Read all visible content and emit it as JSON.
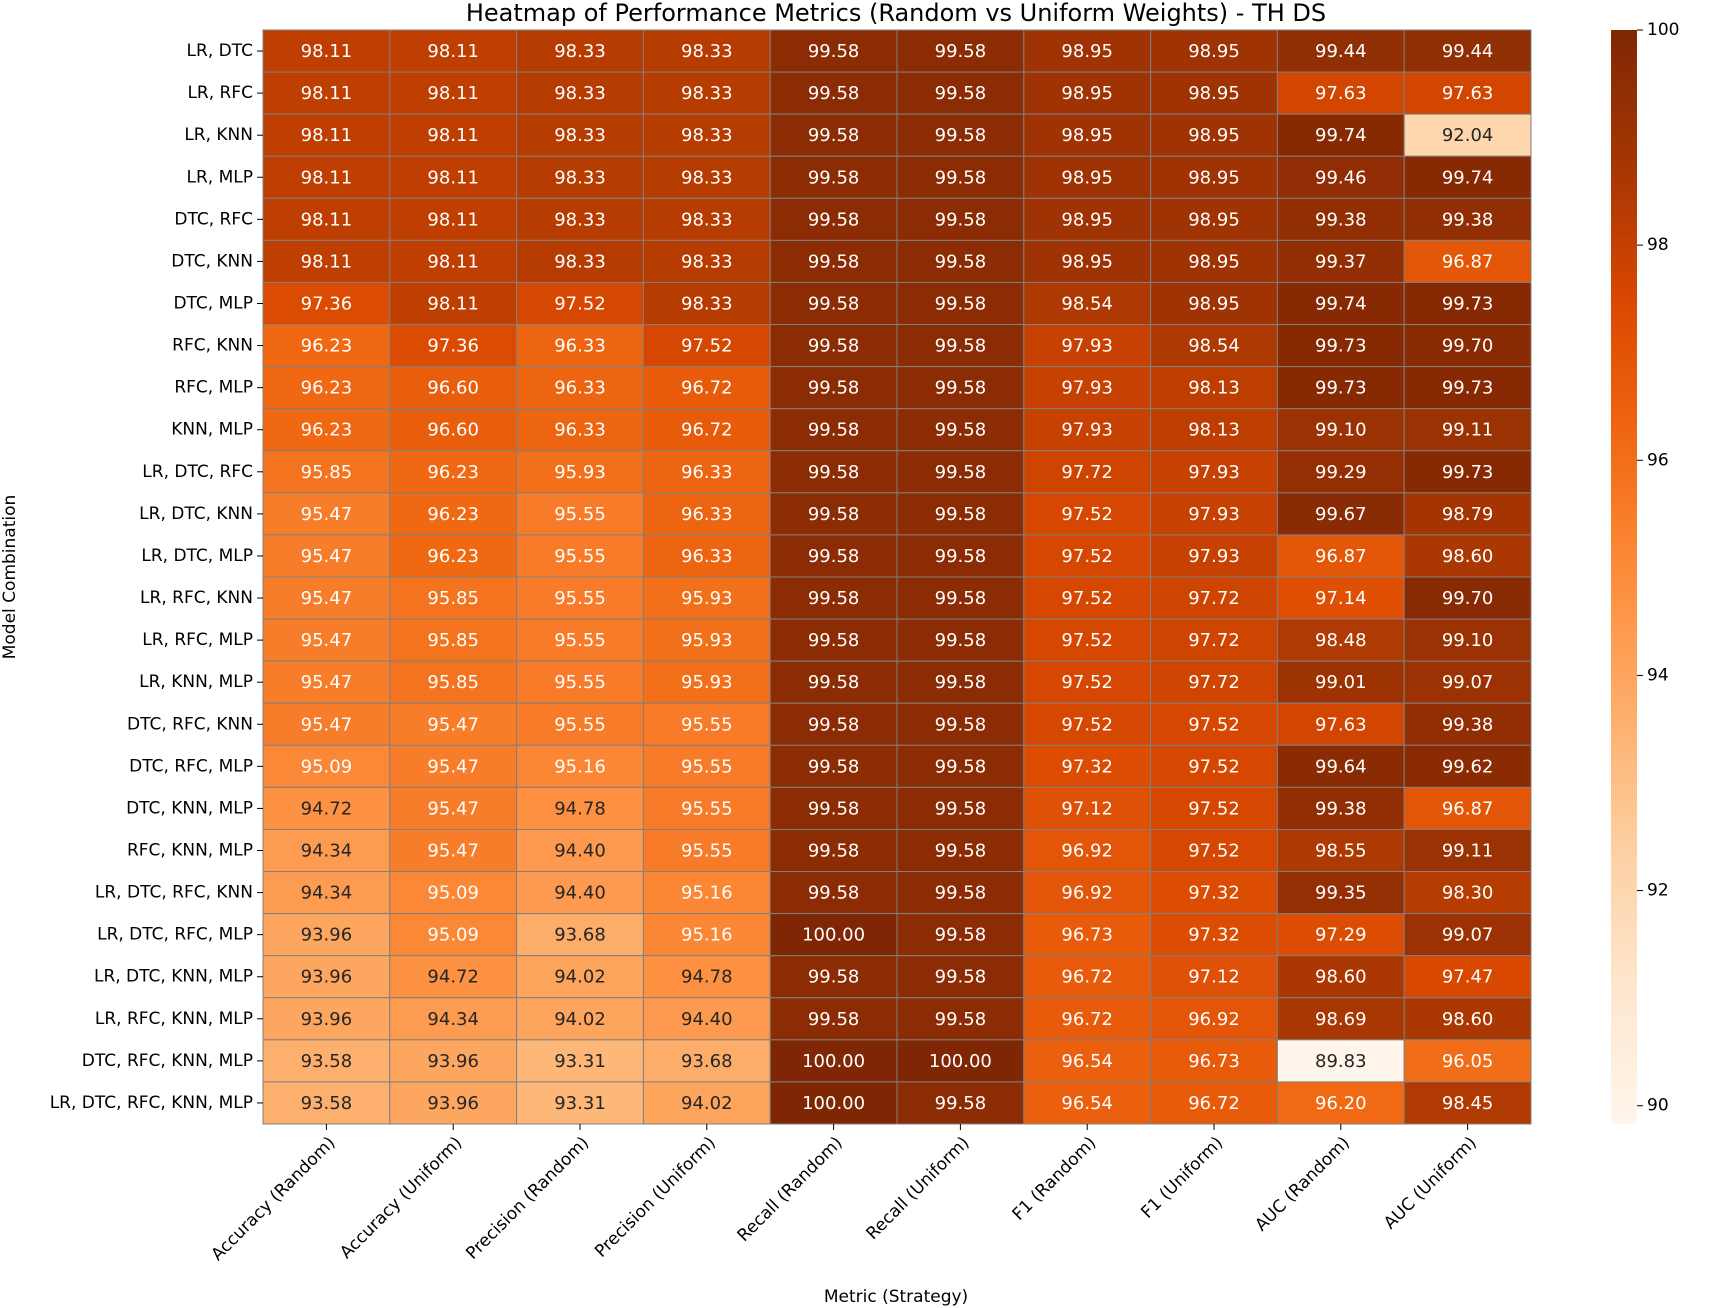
{
  "chart_data": {
    "type": "heatmap",
    "title": "Heatmap of Performance Metrics (Random vs Uniform Weights) - TH DS",
    "xlabel": "Metric (Strategy)",
    "ylabel": "Model Combination",
    "categories": [
      "Accuracy (Random)",
      "Accuracy (Uniform)",
      "Precision (Random)",
      "Precision (Uniform)",
      "Recall (Random)",
      "Recall (Uniform)",
      "F1 (Random)",
      "F1 (Uniform)",
      "AUC (Random)",
      "AUC (Uniform)"
    ],
    "y_categories": [
      "LR, DTC",
      "LR, RFC",
      "LR, KNN",
      "LR, MLP",
      "DTC, RFC",
      "DTC, KNN",
      "DTC, MLP",
      "RFC, KNN",
      "RFC, MLP",
      "KNN, MLP",
      "LR, DTC, RFC",
      "LR, DTC, KNN",
      "LR, DTC, MLP",
      "LR, RFC, KNN",
      "LR, RFC, MLP",
      "LR, KNN, MLP",
      "DTC, RFC, KNN",
      "DTC, RFC, MLP",
      "DTC, KNN, MLP",
      "RFC, KNN, MLP",
      "LR, DTC, RFC, KNN",
      "LR, DTC, RFC, MLP",
      "LR, DTC, KNN, MLP",
      "LR, RFC, KNN, MLP",
      "DTC, RFC, KNN, MLP",
      "LR, DTC, RFC, KNN, MLP"
    ],
    "values": [
      [
        98.11,
        98.11,
        98.33,
        98.33,
        99.58,
        99.58,
        98.95,
        98.95,
        99.44,
        99.44
      ],
      [
        98.11,
        98.11,
        98.33,
        98.33,
        99.58,
        99.58,
        98.95,
        98.95,
        97.63,
        97.63
      ],
      [
        98.11,
        98.11,
        98.33,
        98.33,
        99.58,
        99.58,
        98.95,
        98.95,
        99.74,
        92.04
      ],
      [
        98.11,
        98.11,
        98.33,
        98.33,
        99.58,
        99.58,
        98.95,
        98.95,
        99.46,
        99.74
      ],
      [
        98.11,
        98.11,
        98.33,
        98.33,
        99.58,
        99.58,
        98.95,
        98.95,
        99.38,
        99.38
      ],
      [
        98.11,
        98.11,
        98.33,
        98.33,
        99.58,
        99.58,
        98.95,
        98.95,
        99.37,
        96.87
      ],
      [
        97.36,
        98.11,
        97.52,
        98.33,
        99.58,
        99.58,
        98.54,
        98.95,
        99.74,
        99.73
      ],
      [
        96.23,
        97.36,
        96.33,
        97.52,
        99.58,
        99.58,
        97.93,
        98.54,
        99.73,
        99.7
      ],
      [
        96.23,
        96.6,
        96.33,
        96.72,
        99.58,
        99.58,
        97.93,
        98.13,
        99.73,
        99.73
      ],
      [
        96.23,
        96.6,
        96.33,
        96.72,
        99.58,
        99.58,
        97.93,
        98.13,
        99.1,
        99.11
      ],
      [
        95.85,
        96.23,
        95.93,
        96.33,
        99.58,
        99.58,
        97.72,
        97.93,
        99.29,
        99.73
      ],
      [
        95.47,
        96.23,
        95.55,
        96.33,
        99.58,
        99.58,
        97.52,
        97.93,
        99.67,
        98.79
      ],
      [
        95.47,
        96.23,
        95.55,
        96.33,
        99.58,
        99.58,
        97.52,
        97.93,
        96.87,
        98.6
      ],
      [
        95.47,
        95.85,
        95.55,
        95.93,
        99.58,
        99.58,
        97.52,
        97.72,
        97.14,
        99.7
      ],
      [
        95.47,
        95.85,
        95.55,
        95.93,
        99.58,
        99.58,
        97.52,
        97.72,
        98.48,
        99.1
      ],
      [
        95.47,
        95.85,
        95.55,
        95.93,
        99.58,
        99.58,
        97.52,
        97.72,
        99.01,
        99.07
      ],
      [
        95.47,
        95.47,
        95.55,
        95.55,
        99.58,
        99.58,
        97.52,
        97.52,
        97.63,
        99.38
      ],
      [
        95.09,
        95.47,
        95.16,
        95.55,
        99.58,
        99.58,
        97.32,
        97.52,
        99.64,
        99.62
      ],
      [
        94.72,
        95.47,
        94.78,
        95.55,
        99.58,
        99.58,
        97.12,
        97.52,
        99.38,
        96.87
      ],
      [
        94.34,
        95.47,
        94.4,
        95.55,
        99.58,
        99.58,
        96.92,
        97.52,
        98.55,
        99.11
      ],
      [
        94.34,
        95.09,
        94.4,
        95.16,
        99.58,
        99.58,
        96.92,
        97.32,
        99.35,
        98.3
      ],
      [
        93.96,
        95.09,
        93.68,
        95.16,
        100,
        99.58,
        96.73,
        97.32,
        97.29,
        99.07
      ],
      [
        93.96,
        94.72,
        94.02,
        94.78,
        99.58,
        99.58,
        96.72,
        97.12,
        98.6,
        97.47
      ],
      [
        93.96,
        94.34,
        94.02,
        94.4,
        99.58,
        99.58,
        96.72,
        96.92,
        98.69,
        98.6
      ],
      [
        93.58,
        93.96,
        93.31,
        93.68,
        100,
        100,
        96.54,
        96.73,
        89.83,
        96.05
      ],
      [
        93.58,
        93.96,
        93.31,
        94.02,
        100,
        99.58,
        96.54,
        96.72,
        96.2,
        98.45
      ]
    ],
    "value_labels": [
      [
        "98.11",
        "98.11",
        "98.33",
        "98.33",
        "99.58",
        "99.58",
        "98.95",
        "98.95",
        "99.44",
        "99.44"
      ],
      [
        "98.11",
        "98.11",
        "98.33",
        "98.33",
        "99.58",
        "99.58",
        "98.95",
        "98.95",
        "97.63",
        "97.63"
      ],
      [
        "98.11",
        "98.11",
        "98.33",
        "98.33",
        "99.58",
        "99.58",
        "98.95",
        "98.95",
        "99.74",
        "92.04"
      ],
      [
        "98.11",
        "98.11",
        "98.33",
        "98.33",
        "99.58",
        "99.58",
        "98.95",
        "98.95",
        "99.46",
        "99.74"
      ],
      [
        "98.11",
        "98.11",
        "98.33",
        "98.33",
        "99.58",
        "99.58",
        "98.95",
        "98.95",
        "99.38",
        "99.38"
      ],
      [
        "98.11",
        "98.11",
        "98.33",
        "98.33",
        "99.58",
        "99.58",
        "98.95",
        "98.95",
        "99.37",
        "96.87"
      ],
      [
        "97.36",
        "98.11",
        "97.52",
        "98.33",
        "99.58",
        "99.58",
        "98.54",
        "98.95",
        "99.74",
        "99.73"
      ],
      [
        "96.23",
        "97.36",
        "96.33",
        "97.52",
        "99.58",
        "99.58",
        "97.93",
        "98.54",
        "99.73",
        "99.70"
      ],
      [
        "96.23",
        "96.60",
        "96.33",
        "96.72",
        "99.58",
        "99.58",
        "97.93",
        "98.13",
        "99.73",
        "99.73"
      ],
      [
        "96.23",
        "96.60",
        "96.33",
        "96.72",
        "99.58",
        "99.58",
        "97.93",
        "98.13",
        "99.10",
        "99.11"
      ],
      [
        "95.85",
        "96.23",
        "95.93",
        "96.33",
        "99.58",
        "99.58",
        "97.72",
        "97.93",
        "99.29",
        "99.73"
      ],
      [
        "95.47",
        "96.23",
        "95.55",
        "96.33",
        "99.58",
        "99.58",
        "97.52",
        "97.93",
        "99.67",
        "98.79"
      ],
      [
        "95.47",
        "96.23",
        "95.55",
        "96.33",
        "99.58",
        "99.58",
        "97.52",
        "97.93",
        "96.87",
        "98.60"
      ],
      [
        "95.47",
        "95.85",
        "95.55",
        "95.93",
        "99.58",
        "99.58",
        "97.52",
        "97.72",
        "97.14",
        "99.70"
      ],
      [
        "95.47",
        "95.85",
        "95.55",
        "95.93",
        "99.58",
        "99.58",
        "97.52",
        "97.72",
        "98.48",
        "99.10"
      ],
      [
        "95.47",
        "95.85",
        "95.55",
        "95.93",
        "99.58",
        "99.58",
        "97.52",
        "97.72",
        "99.01",
        "99.07"
      ],
      [
        "95.47",
        "95.47",
        "95.55",
        "95.55",
        "99.58",
        "99.58",
        "97.52",
        "97.52",
        "97.63",
        "99.38"
      ],
      [
        "95.09",
        "95.47",
        "95.16",
        "95.55",
        "99.58",
        "99.58",
        "97.32",
        "97.52",
        "99.64",
        "99.62"
      ],
      [
        "94.72",
        "95.47",
        "94.78",
        "95.55",
        "99.58",
        "99.58",
        "97.12",
        "97.52",
        "99.38",
        "96.87"
      ],
      [
        "94.34",
        "95.47",
        "94.40",
        "95.55",
        "99.58",
        "99.58",
        "96.92",
        "97.52",
        "98.55",
        "99.11"
      ],
      [
        "94.34",
        "95.09",
        "94.40",
        "95.16",
        "99.58",
        "99.58",
        "96.92",
        "97.32",
        "99.35",
        "98.30"
      ],
      [
        "93.96",
        "95.09",
        "93.68",
        "95.16",
        "100.00",
        "99.58",
        "96.73",
        "97.32",
        "97.29",
        "99.07"
      ],
      [
        "93.96",
        "94.72",
        "94.02",
        "94.78",
        "99.58",
        "99.58",
        "96.72",
        "97.12",
        "98.60",
        "97.47"
      ],
      [
        "93.96",
        "94.34",
        "94.02",
        "94.40",
        "99.58",
        "99.58",
        "96.72",
        "96.92",
        "98.69",
        "98.60"
      ],
      [
        "93.58",
        "93.96",
        "93.31",
        "93.68",
        "100.00",
        "100.00",
        "96.54",
        "96.73",
        "89.83",
        "96.05"
      ],
      [
        "93.58",
        "93.96",
        "93.31",
        "94.02",
        "100.00",
        "99.58",
        "96.54",
        "96.72",
        "96.20",
        "98.45"
      ]
    ],
    "colormap": "Oranges",
    "clim": [
      89.83,
      100
    ],
    "colorbar_ticks": [
      90,
      92,
      94,
      96,
      98,
      100
    ]
  }
}
